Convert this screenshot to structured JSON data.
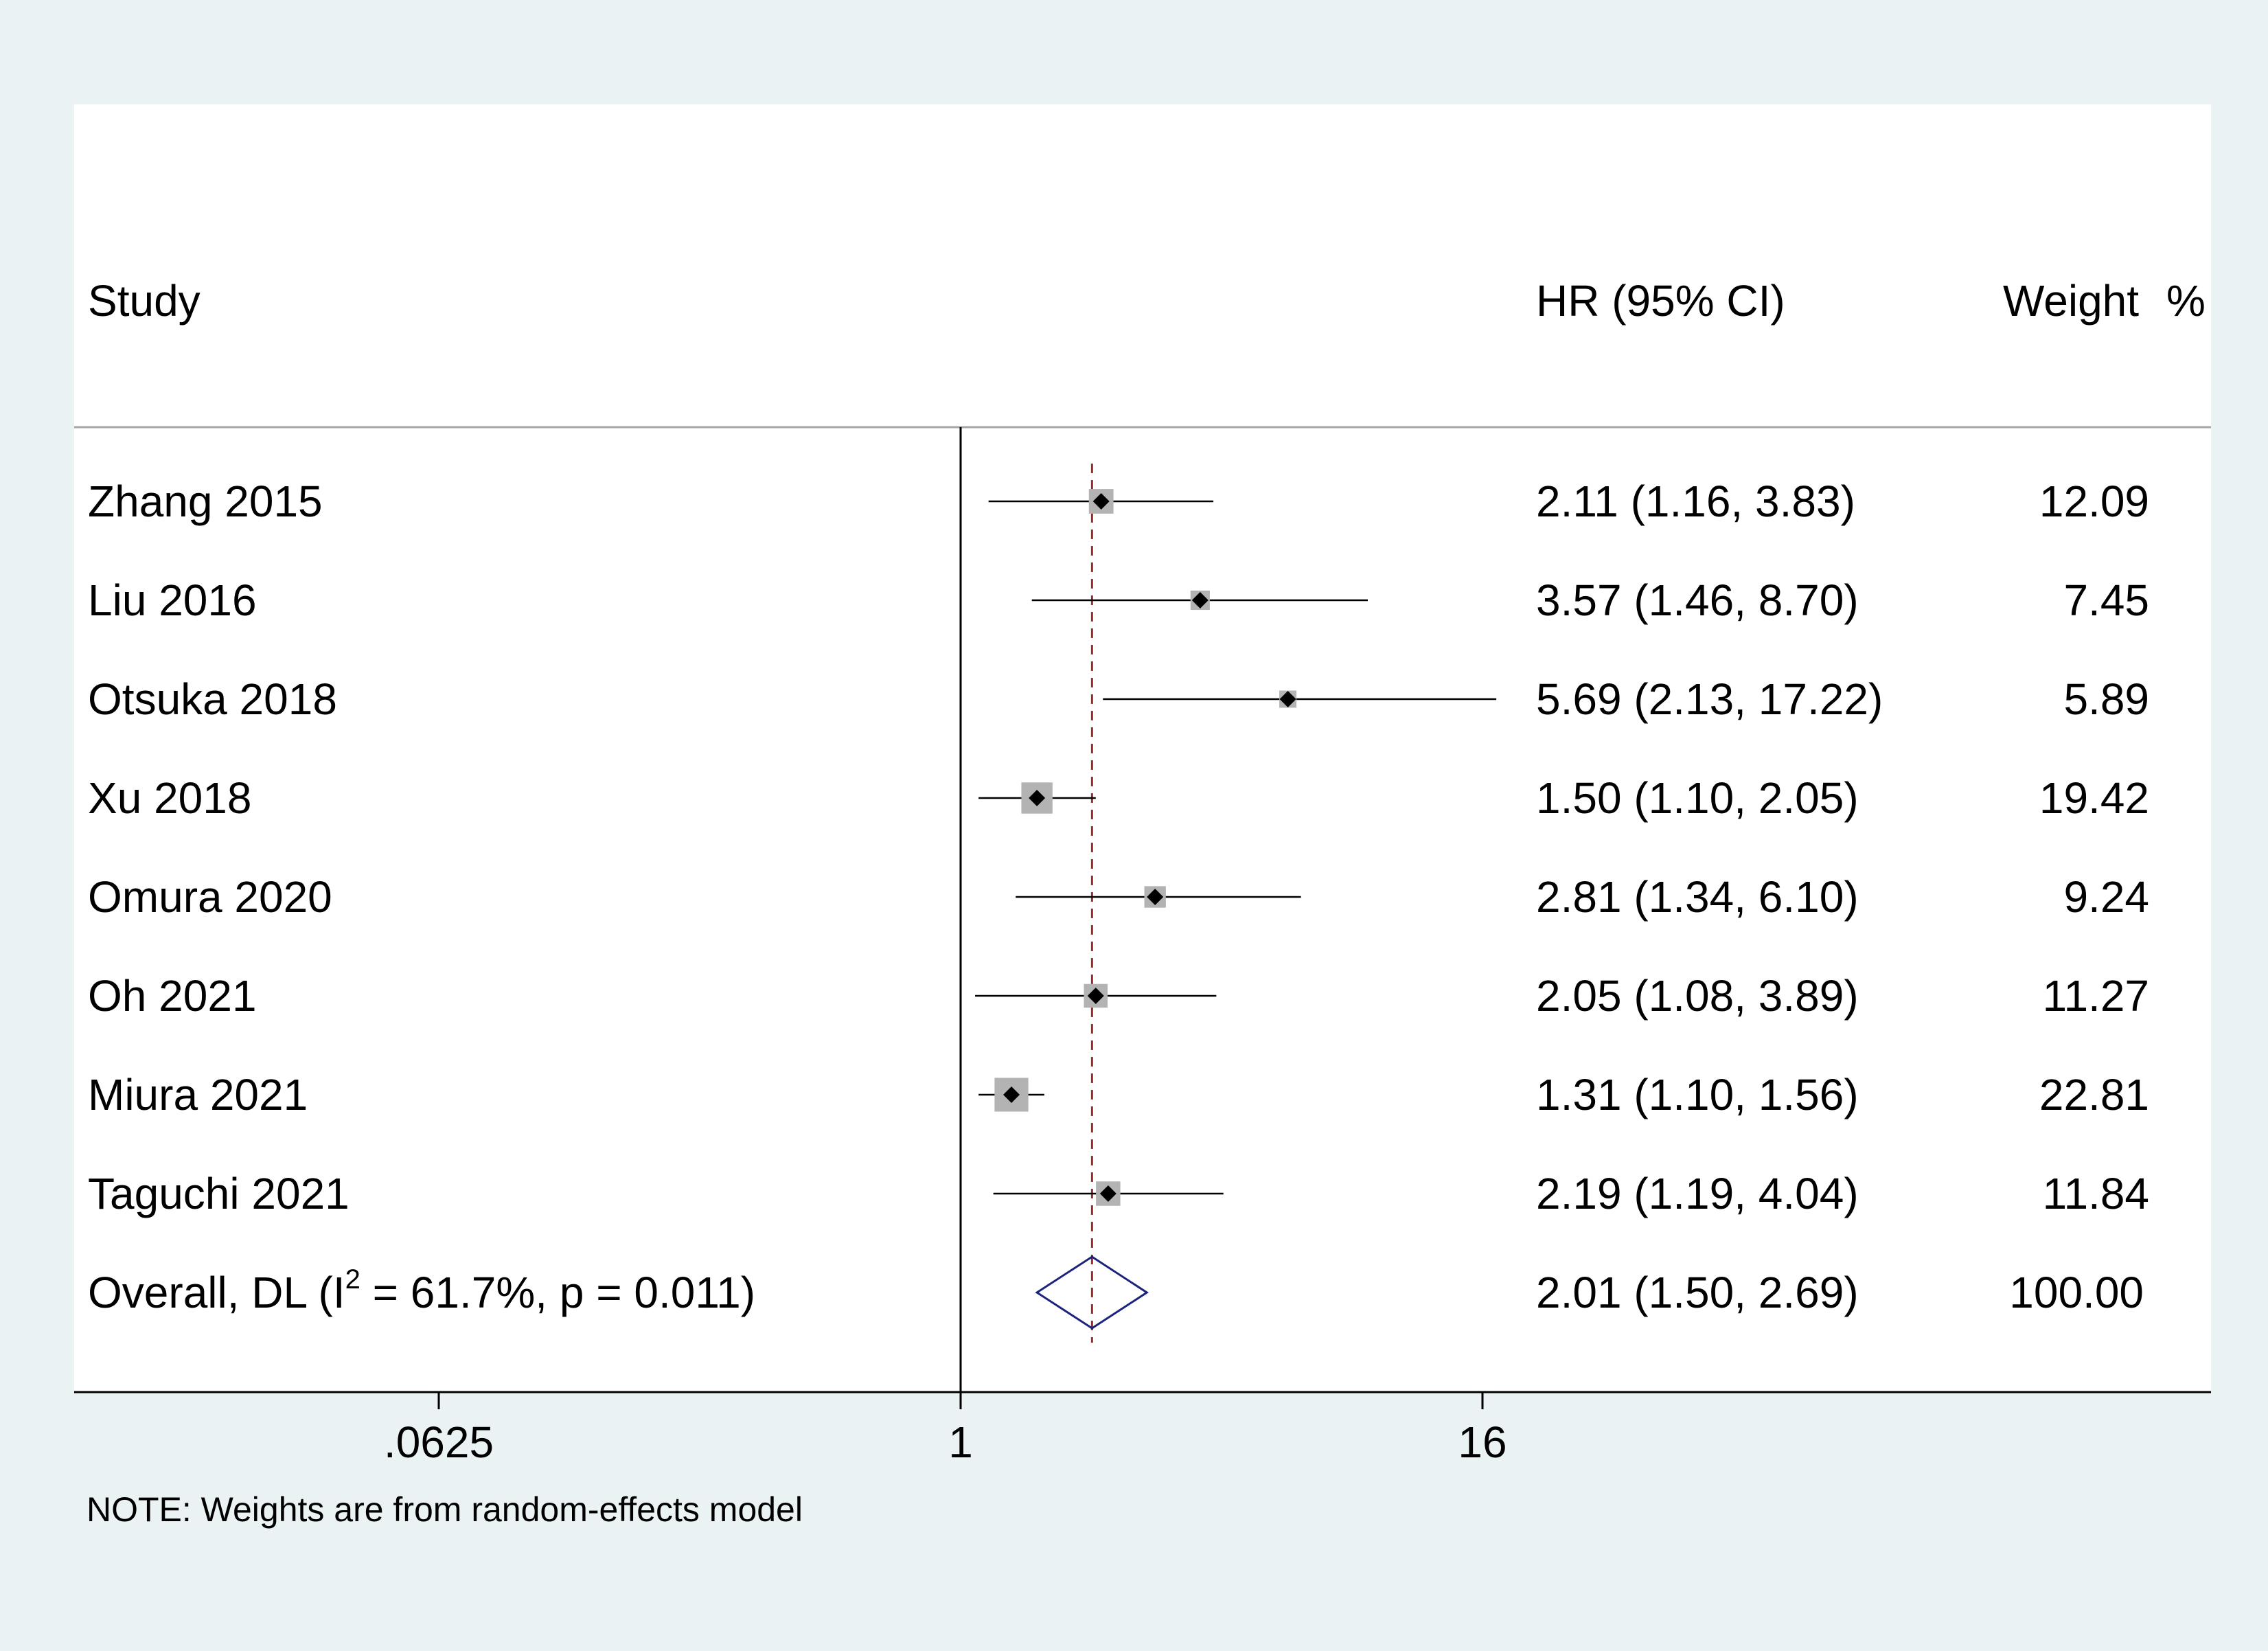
{
  "chart_data": {
    "type": "forest",
    "x_scale": "log2",
    "xlim": [
      0.015625,
      256
    ],
    "reference_line": 1,
    "pooled_line": 2.01,
    "ticks": [
      {
        "value": 0.0625,
        "label": ".0625"
      },
      {
        "value": 1,
        "label": "1"
      },
      {
        "value": 16,
        "label": "16"
      }
    ],
    "headers": {
      "study": "Study",
      "effect": "HR (95% CI)",
      "weight": "Weight",
      "weight_unit": "%"
    },
    "studies": [
      {
        "name": "Zhang 2015",
        "hr": 2.11,
        "lo": 1.16,
        "hi": 3.83,
        "weight": 12.09,
        "effect_text": "2.11 (1.16, 3.83)",
        "weight_text": "12.09"
      },
      {
        "name": "Liu 2016",
        "hr": 3.57,
        "lo": 1.46,
        "hi": 8.7,
        "weight": 7.45,
        "effect_text": "3.57 (1.46, 8.70)",
        "weight_text": "7.45"
      },
      {
        "name": "Otsuka 2018",
        "hr": 5.69,
        "lo": 2.13,
        "hi": 17.22,
        "weight": 5.89,
        "effect_text": "5.69 (2.13, 17.22)",
        "weight_text": "5.89"
      },
      {
        "name": "Xu 2018",
        "hr": 1.5,
        "lo": 1.1,
        "hi": 2.05,
        "weight": 19.42,
        "effect_text": "1.50 (1.10, 2.05)",
        "weight_text": "19.42"
      },
      {
        "name": "Omura 2020",
        "hr": 2.81,
        "lo": 1.34,
        "hi": 6.1,
        "weight": 9.24,
        "effect_text": "2.81 (1.34, 6.10)",
        "weight_text": "9.24"
      },
      {
        "name": "Oh 2021",
        "hr": 2.05,
        "lo": 1.08,
        "hi": 3.89,
        "weight": 11.27,
        "effect_text": "2.05 (1.08, 3.89)",
        "weight_text": "11.27"
      },
      {
        "name": "Miura 2021",
        "hr": 1.31,
        "lo": 1.1,
        "hi": 1.56,
        "weight": 22.81,
        "effect_text": "1.31 (1.10, 1.56)",
        "weight_text": "22.81"
      },
      {
        "name": "Taguchi 2021",
        "hr": 2.19,
        "lo": 1.19,
        "hi": 4.04,
        "weight": 11.84,
        "effect_text": "2.19 (1.19, 4.04)",
        "weight_text": "11.84"
      }
    ],
    "overall": {
      "label_prefix": "Overall, DL (I",
      "label_sup": "2",
      "label_suffix": " = 61.7%, p = 0.011)",
      "hr": 2.01,
      "lo": 1.5,
      "hi": 2.69,
      "weight": 100.0,
      "effect_text": "2.01 (1.50, 2.69)",
      "weight_text": "100.00"
    },
    "note": "NOTE: Weights are from random-effects model"
  },
  "colors": {
    "background": "#eaf2f3",
    "panel": "#ffffff",
    "box": "#b3b3b3",
    "point": "#000000",
    "pooled_line": "#9b2c2c",
    "diamond": "#1a237e",
    "axis": "#000000",
    "rule": "#a6a6a6"
  }
}
